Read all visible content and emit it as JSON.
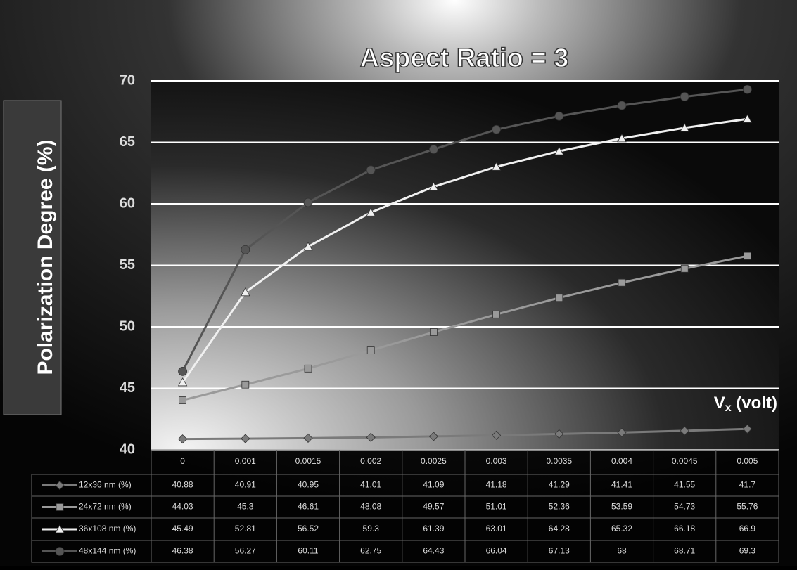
{
  "chart_data": {
    "type": "line",
    "title": "Aspect Ratio = 3",
    "y_label": "Polarization Degree (%)",
    "x_label": {
      "main": "V",
      "sub": "x",
      "rest": " (volt)"
    },
    "categories": [
      "0",
      "0.001",
      "0.0015",
      "0.002",
      "0.0025",
      "0.003",
      "0.0035",
      "0.004",
      "0.0045",
      "0.005"
    ],
    "ylim": [
      40,
      70
    ],
    "yticks": [
      40,
      45,
      50,
      55,
      60,
      65,
      70
    ],
    "grid": true,
    "series": [
      {
        "name": "12x36 nm (%)",
        "color": "#7a7a7a",
        "marker": "diamond",
        "values": [
          40.88,
          40.91,
          40.95,
          41.01,
          41.09,
          41.18,
          41.29,
          41.41,
          41.55,
          41.7
        ]
      },
      {
        "name": "24x72 nm (%)",
        "color": "#9a9a9a",
        "marker": "square",
        "values": [
          44.03,
          45.3,
          46.61,
          48.08,
          49.57,
          51.01,
          52.36,
          53.59,
          54.73,
          55.76
        ]
      },
      {
        "name": "36x108 nm (%)",
        "color": "#f0f0f0",
        "marker": "triangle",
        "values": [
          45.49,
          52.81,
          56.52,
          59.3,
          61.39,
          63.01,
          64.28,
          65.32,
          66.18,
          66.9
        ]
      },
      {
        "name": "48x144 nm (%)",
        "color": "#555555",
        "marker": "circle",
        "values": [
          46.38,
          56.27,
          60.11,
          62.75,
          64.43,
          66.04,
          67.13,
          68,
          68.71,
          69.3
        ]
      }
    ]
  }
}
